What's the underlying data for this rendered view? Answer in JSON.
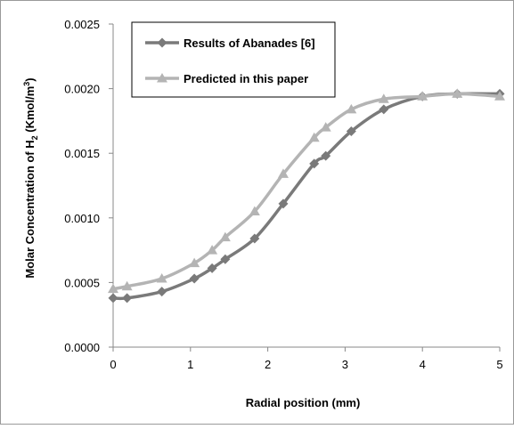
{
  "chart_data": {
    "type": "line",
    "title": "",
    "xlabel": "Radial position (mm)",
    "ylabel_main": "Molar Concentration of H",
    "ylabel_sub": "2",
    "ylabel_unit_pre": " (Kmol/m",
    "ylabel_unit_sup": "3",
    "ylabel_unit_post": ")",
    "xlim": [
      0,
      5
    ],
    "ylim": [
      0,
      0.0025
    ],
    "xticks": [
      "0",
      "1",
      "2",
      "3",
      "4",
      "5"
    ],
    "yticks": [
      "0.0000",
      "0.0005",
      "0.0010",
      "0.0015",
      "0.0020",
      "0.0025"
    ],
    "grid": false,
    "legend_position": "top-left",
    "series": [
      {
        "name": "Results of Abanades [6]",
        "color": "#7a7a7a",
        "marker": "diamond",
        "x": [
          0,
          0.18,
          0.63,
          1.05,
          1.28,
          1.45,
          1.83,
          2.2,
          2.6,
          2.75,
          3.08,
          3.5,
          4.0,
          4.45,
          5.0
        ],
        "y": [
          0.00038,
          0.00038,
          0.00043,
          0.00053,
          0.00061,
          0.00068,
          0.00084,
          0.00111,
          0.00142,
          0.00148,
          0.00167,
          0.00184,
          0.00194,
          0.00196,
          0.00196
        ]
      },
      {
        "name": "Predicted in this paper",
        "color": "#b4b4b4",
        "marker": "triangle",
        "x": [
          0,
          0.18,
          0.63,
          1.05,
          1.28,
          1.45,
          1.83,
          2.2,
          2.6,
          2.75,
          3.08,
          3.5,
          4.0,
          4.45,
          5.0
        ],
        "y": [
          0.00045,
          0.00047,
          0.00053,
          0.00065,
          0.00075,
          0.00085,
          0.00105,
          0.00134,
          0.00162,
          0.0017,
          0.00184,
          0.00192,
          0.00194,
          0.00196,
          0.00194
        ]
      }
    ]
  }
}
